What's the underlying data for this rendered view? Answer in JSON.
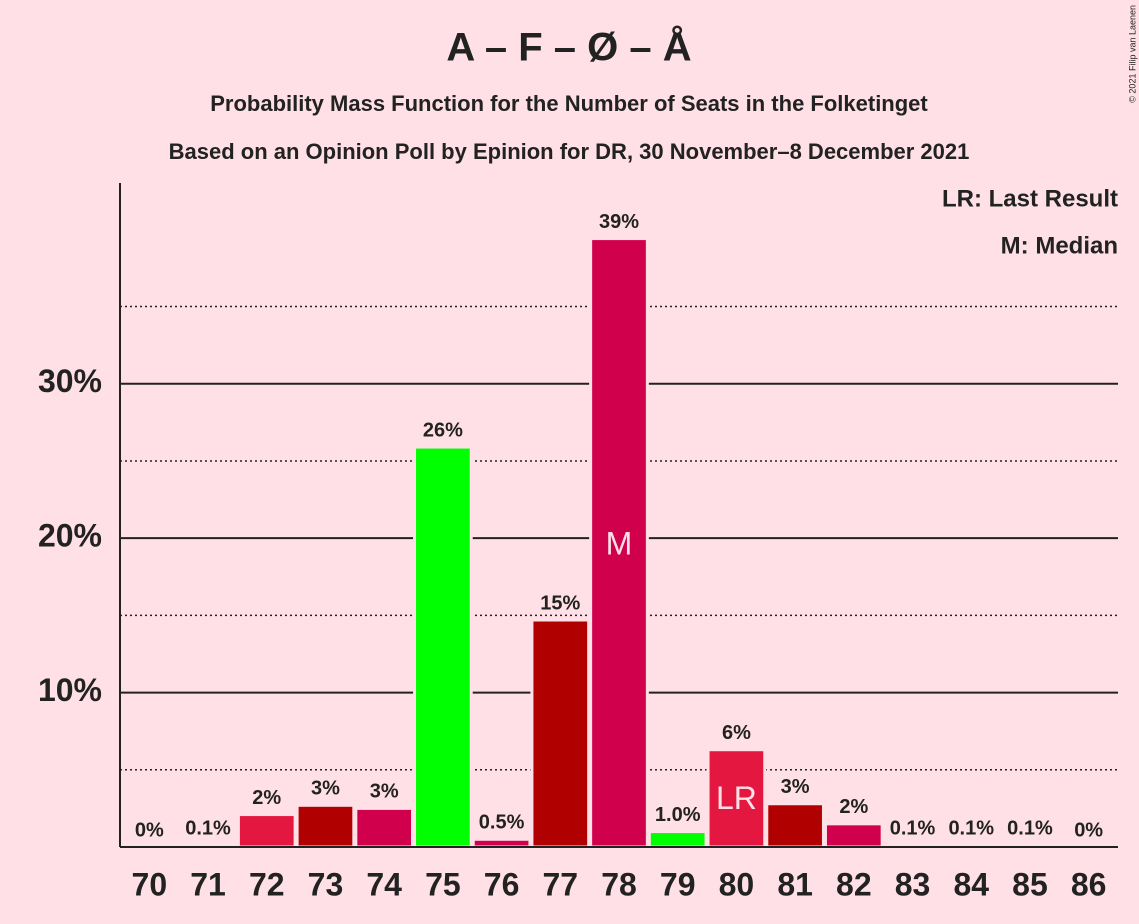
{
  "chart_data": {
    "type": "bar",
    "title": "A – F – Ø – Å",
    "subtitle": "Probability Mass Function for the Number of Seats in the Folketinget",
    "subtitle2": "Based on an Opinion Poll by Epinion for DR, 30 November–8 December 2021",
    "copyright": "© 2021 Filip van Laenen",
    "categories": [
      70,
      71,
      72,
      73,
      74,
      75,
      76,
      77,
      78,
      79,
      80,
      81,
      82,
      83,
      84,
      85,
      86
    ],
    "values": [
      0,
      0.1,
      2.1,
      2.7,
      2.5,
      25.9,
      0.5,
      14.7,
      39.4,
      1.0,
      6.3,
      2.8,
      1.5,
      0.1,
      0.1,
      0.1,
      0
    ],
    "value_labels": [
      "0%",
      "0.1%",
      "2%",
      "3%",
      "3%",
      "26%",
      "0.5%",
      "15%",
      "39%",
      "1.0%",
      "6%",
      "3%",
      "2%",
      "0.1%",
      "0.1%",
      "0.1%",
      "0%"
    ],
    "colors": [
      "#d1004d",
      "#d1004d",
      "#e3173f",
      "#b00000",
      "#d1004d",
      "#00ff00",
      "#d1004d",
      "#b00000",
      "#d1004d",
      "#00ff00",
      "#e3173f",
      "#b00000",
      "#d1004d",
      "#d1004d",
      "#d1004d",
      "#d1004d",
      "#d1004d"
    ],
    "ylim": [
      0,
      43
    ],
    "yticks": [
      {
        "value": 10,
        "label": "10%"
      },
      {
        "value": 20,
        "label": "20%"
      },
      {
        "value": 30,
        "label": "30%"
      }
    ],
    "minor_yticks": [
      5,
      15,
      25,
      35
    ],
    "grid": true,
    "markers": [
      {
        "category": 78,
        "label": "M"
      },
      {
        "category": 80,
        "label": "LR"
      }
    ],
    "legend": [
      "LR: Last Result",
      "M: Median"
    ]
  }
}
